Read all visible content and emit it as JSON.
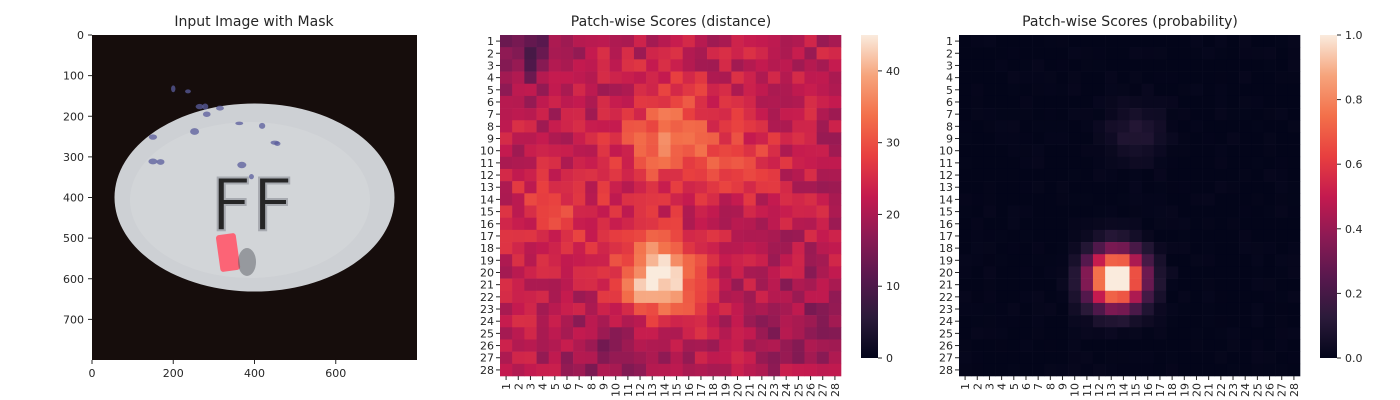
{
  "colors": {
    "background": "#ffffff",
    "mask": "#ff5a6e",
    "image_bg": "#160d0c",
    "pill": "#cdd0d4",
    "speckle": "#5a5c9c",
    "axis": "#262626"
  },
  "chart_data": [
    {
      "type": "image",
      "title": "Input Image with Mask",
      "xlabel": "",
      "ylabel": "",
      "xlim": [
        0,
        800
      ],
      "ylim": [
        800,
        0
      ],
      "x_ticks": [
        0,
        200,
        400,
        600
      ],
      "y_ticks": [
        0,
        100,
        200,
        300,
        400,
        500,
        600,
        700
      ],
      "content": {
        "pill_center": [
          400,
          400
        ],
        "pill_radii": [
          345,
          232
        ],
        "embossed_text": "FF",
        "mask_center": [
          335,
          540
        ],
        "mask_size": [
          40,
          90
        ]
      }
    },
    {
      "type": "heatmap",
      "title": "Patch-wise Scores (distance)",
      "rows": 28,
      "cols": 28,
      "x_tick_labels": [
        "1",
        "2",
        "3",
        "4",
        "5",
        "6",
        "7",
        "8",
        "9",
        "10",
        "11",
        "12",
        "13",
        "14",
        "15",
        "16",
        "17",
        "18",
        "19",
        "20",
        "21",
        "22",
        "23",
        "24",
        "25",
        "26",
        "27",
        "28"
      ],
      "y_tick_labels": [
        "1",
        "2",
        "3",
        "4",
        "5",
        "6",
        "7",
        "8",
        "9",
        "10",
        "11",
        "12",
        "13",
        "14",
        "15",
        "16",
        "17",
        "18",
        "19",
        "20",
        "21",
        "22",
        "23",
        "24",
        "25",
        "26",
        "27",
        "28"
      ],
      "colorbar": {
        "min": 0,
        "max": 45,
        "ticks": [
          0,
          10,
          20,
          30,
          40
        ],
        "tick_labels": [
          "0",
          "10",
          "20",
          "30",
          "40"
        ],
        "colormap": "rocket"
      },
      "value_model": {
        "base": 22,
        "blobs": [
          {
            "row": 20.5,
            "col": 13.5,
            "amp": 24,
            "sigma": 2.2
          },
          {
            "row": 9,
            "col": 14.5,
            "amp": 12,
            "sigma": 2.8
          },
          {
            "row": 11,
            "col": 20.5,
            "amp": 6,
            "sigma": 2
          },
          {
            "row": 15,
            "col": 5,
            "amp": 5,
            "sigma": 3
          },
          {
            "row": 2,
            "col": 3,
            "amp": -9,
            "sigma": 2
          },
          {
            "row": 27,
            "col": 10,
            "amp": -5,
            "sigma": 3
          },
          {
            "row": 24,
            "col": 25,
            "amp": -4,
            "sigma": 3
          }
        ],
        "noise": 4,
        "min": 0,
        "max": 45
      }
    },
    {
      "type": "heatmap",
      "title": "Patch-wise Scores (probability)",
      "rows": 28,
      "cols": 28,
      "x_tick_labels": [
        "1",
        "2",
        "3",
        "4",
        "5",
        "6",
        "7",
        "8",
        "9",
        "10",
        "11",
        "12",
        "13",
        "14",
        "15",
        "16",
        "17",
        "18",
        "19",
        "20",
        "21",
        "22",
        "23",
        "24",
        "25",
        "26",
        "27",
        "28"
      ],
      "y_tick_labels": [
        "1",
        "2",
        "3",
        "4",
        "5",
        "6",
        "7",
        "8",
        "9",
        "10",
        "11",
        "12",
        "13",
        "14",
        "15",
        "16",
        "17",
        "18",
        "19",
        "20",
        "21",
        "22",
        "23",
        "24",
        "25",
        "26",
        "27",
        "28"
      ],
      "colorbar": {
        "min": 0,
        "max": 1,
        "ticks": [
          0,
          0.2,
          0.4,
          0.6,
          0.8,
          1.0
        ],
        "tick_labels": [
          "0.0",
          "0.2",
          "0.4",
          "0.6",
          "0.8",
          "1.0"
        ],
        "colormap": "rocket"
      },
      "value_model": {
        "base": 0,
        "blobs": [
          {
            "row": 20.5,
            "col": 13.4,
            "amp": 1.15,
            "sigma": 1.6
          },
          {
            "row": 8.5,
            "col": 15,
            "amp": 0.1,
            "sigma": 1.6
          }
        ],
        "noise": 0.012,
        "min": 0,
        "max": 1
      }
    }
  ]
}
